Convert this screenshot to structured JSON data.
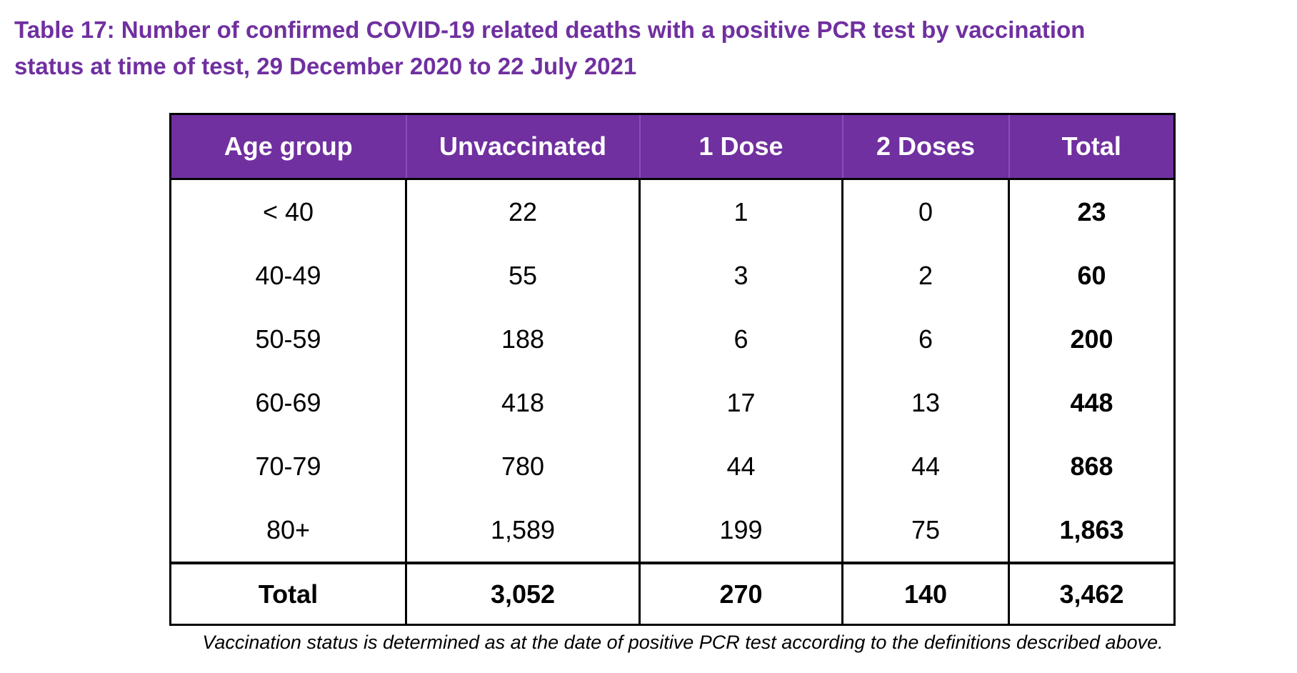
{
  "page": {
    "title": "Table 17: Number of confirmed COVID-19 related deaths with a positive PCR test by vaccination status at time of test, 29 December 2020 to 22 July 2021",
    "footnote": "Vaccination status is determined as at the date of positive PCR test according to the definitions described above."
  },
  "table": {
    "columns": [
      "Age group",
      "Unvaccinated",
      "1 Dose",
      "2 Doses",
      "Total"
    ],
    "rows": [
      [
        "< 40",
        "22",
        "1",
        "0",
        "23"
      ],
      [
        "40-49",
        "55",
        "3",
        "2",
        "60"
      ],
      [
        "50-59",
        "188",
        "6",
        "6",
        "200"
      ],
      [
        "60-69",
        "418",
        "17",
        "13",
        "448"
      ],
      [
        "70-79",
        "780",
        "44",
        "44",
        "868"
      ],
      [
        "80+",
        "1,589",
        "199",
        "75",
        "1,863"
      ]
    ],
    "total_row": [
      "Total",
      "3,052",
      "270",
      "140",
      "3,462"
    ]
  },
  "colors": {
    "title_text": "#7030A0",
    "header_background": "#7030A0",
    "header_text": "#FFFFFF",
    "body_text": "#000000",
    "border": "#000000"
  }
}
